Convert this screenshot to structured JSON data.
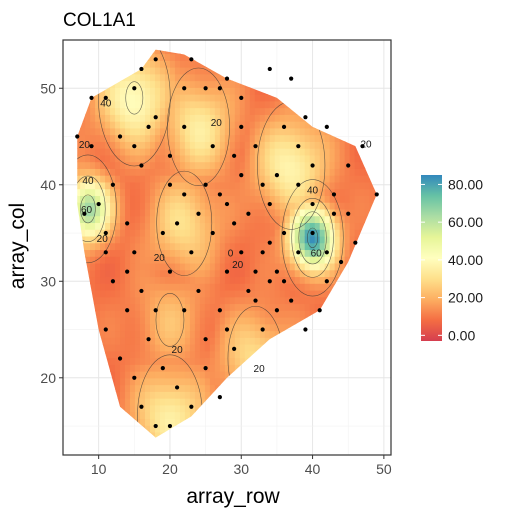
{
  "chart_data": {
    "type": "heatmap",
    "title": "COL1A1",
    "xlabel": "array_row",
    "ylabel": "array_col",
    "xlim": [
      5,
      51
    ],
    "ylim": [
      12,
      55
    ],
    "x_ticks": [
      10,
      20,
      30,
      40,
      50
    ],
    "y_ticks": [
      20,
      30,
      40,
      50
    ],
    "x_tick_labels": [
      "10",
      "20",
      "30",
      "40",
      "50"
    ],
    "y_tick_labels": [
      "20",
      "30",
      "40",
      "50"
    ],
    "grid": true,
    "legend": {
      "placement": "right",
      "min": -3,
      "max": 85,
      "ticks": [
        0,
        20,
        40,
        60,
        80
      ],
      "tick_labels": [
        "0.00",
        "20.00",
        "40.00",
        "60.00",
        "80.00"
      ],
      "colors": [
        "#d53e4f",
        "#f46d43",
        "#fdae61",
        "#fee08b",
        "#ffffbf",
        "#e6f598",
        "#abdda4",
        "#66c2a5",
        "#3288bd"
      ]
    },
    "surface_hull": [
      [
        7,
        45
      ],
      [
        9,
        49
      ],
      [
        16,
        52
      ],
      [
        18,
        54
      ],
      [
        22,
        53.5
      ],
      [
        28,
        51
      ],
      [
        35,
        49
      ],
      [
        40,
        46
      ],
      [
        46,
        44
      ],
      [
        49,
        39
      ],
      [
        45,
        32
      ],
      [
        41,
        27
      ],
      [
        34,
        24
      ],
      [
        28,
        20
      ],
      [
        23,
        16
      ],
      [
        18,
        13.8
      ],
      [
        13,
        17
      ],
      [
        10,
        25
      ],
      [
        8,
        33
      ],
      [
        7,
        38
      ]
    ],
    "hotspots": [
      {
        "x": 40,
        "y": 34.5,
        "value": 84
      },
      {
        "x": 8.5,
        "y": 37.5,
        "value": 66
      },
      {
        "x": 15,
        "y": 49,
        "value": 42
      },
      {
        "x": 37,
        "y": 42,
        "value": 38
      },
      {
        "x": 20,
        "y": 16,
        "value": 36
      },
      {
        "x": 22,
        "y": 36,
        "value": 30
      },
      {
        "x": 24,
        "y": 46,
        "value": 34
      },
      {
        "x": 32,
        "y": 22,
        "value": 30
      },
      {
        "x": 20,
        "y": 26,
        "value": 22
      }
    ],
    "base_value": 9,
    "spots": [
      [
        7,
        45
      ],
      [
        9,
        49
      ],
      [
        11,
        49
      ],
      [
        15,
        50
      ],
      [
        16,
        52
      ],
      [
        18,
        53
      ],
      [
        22,
        50
      ],
      [
        23,
        53
      ],
      [
        27,
        50
      ],
      [
        28,
        51
      ],
      [
        34,
        52
      ],
      [
        37,
        51
      ],
      [
        13,
        45
      ],
      [
        15,
        44
      ],
      [
        16,
        42
      ],
      [
        20,
        40
      ],
      [
        22,
        39
      ],
      [
        25,
        40
      ],
      [
        28,
        38
      ],
      [
        30,
        46
      ],
      [
        33,
        40
      ],
      [
        35,
        41
      ],
      [
        38,
        40
      ],
      [
        40,
        42
      ],
      [
        43,
        39
      ],
      [
        45,
        42
      ],
      [
        47,
        44
      ],
      [
        49,
        39
      ],
      [
        8,
        37
      ],
      [
        10,
        38
      ],
      [
        11,
        33
      ],
      [
        12,
        30
      ],
      [
        14,
        31
      ],
      [
        16,
        29
      ],
      [
        18,
        27
      ],
      [
        20,
        31
      ],
      [
        22,
        27
      ],
      [
        24,
        29
      ],
      [
        25,
        24
      ],
      [
        27,
        27
      ],
      [
        28,
        31
      ],
      [
        30,
        33
      ],
      [
        32,
        28
      ],
      [
        34,
        30
      ],
      [
        36,
        30
      ],
      [
        38,
        33
      ],
      [
        40,
        35
      ],
      [
        42,
        33
      ],
      [
        44,
        32
      ],
      [
        41,
        27
      ],
      [
        11,
        25
      ],
      [
        13,
        22
      ],
      [
        15,
        20
      ],
      [
        17,
        24
      ],
      [
        19,
        21
      ],
      [
        21,
        19
      ],
      [
        16,
        17
      ],
      [
        18,
        15
      ],
      [
        20,
        15
      ],
      [
        23,
        17
      ],
      [
        25,
        21
      ],
      [
        27,
        18
      ],
      [
        29,
        23
      ],
      [
        33,
        25
      ],
      [
        35,
        27
      ],
      [
        37,
        28
      ],
      [
        39,
        25
      ],
      [
        26,
        35
      ],
      [
        24,
        37
      ],
      [
        29,
        36
      ],
      [
        31,
        37
      ],
      [
        34,
        38
      ],
      [
        36,
        35
      ],
      [
        12,
        40
      ],
      [
        14,
        36
      ],
      [
        26,
        44
      ],
      [
        20,
        43
      ],
      [
        22,
        46
      ],
      [
        18,
        47
      ],
      [
        32,
        44
      ],
      [
        30,
        49
      ],
      [
        25,
        50
      ],
      [
        17,
        46
      ],
      [
        38,
        44
      ],
      [
        42,
        46
      ],
      [
        45,
        37
      ],
      [
        46,
        34
      ],
      [
        43,
        37
      ],
      [
        40,
        38
      ],
      [
        9,
        44
      ],
      [
        23,
        33
      ],
      [
        27,
        39
      ],
      [
        34,
        34
      ],
      [
        28,
        25
      ],
      [
        32,
        31
      ],
      [
        11,
        35
      ],
      [
        14,
        27
      ],
      [
        19,
        35
      ],
      [
        21,
        36
      ],
      [
        15,
        33
      ],
      [
        30,
        41
      ],
      [
        36,
        46
      ],
      [
        39,
        47
      ],
      [
        42,
        30
      ],
      [
        29,
        43
      ],
      [
        31,
        29
      ],
      [
        33,
        33
      ],
      [
        35,
        31
      ]
    ],
    "contour_labels": [
      {
        "x": 11,
        "y": 48.5,
        "text": "40"
      },
      {
        "x": 8,
        "y": 44.2,
        "text": "20"
      },
      {
        "x": 8.5,
        "y": 40.5,
        "text": "40"
      },
      {
        "x": 8.3,
        "y": 37.5,
        "text": "60"
      },
      {
        "x": 10.5,
        "y": 34.5,
        "text": "20"
      },
      {
        "x": 18.5,
        "y": 32.5,
        "text": "20"
      },
      {
        "x": 26.5,
        "y": 46.5,
        "text": "20"
      },
      {
        "x": 28.5,
        "y": 33,
        "text": "0"
      },
      {
        "x": 29.5,
        "y": 31.8,
        "text": "20"
      },
      {
        "x": 47.5,
        "y": 44.3,
        "text": "20"
      },
      {
        "x": 40,
        "y": 39.5,
        "text": "40"
      },
      {
        "x": 40.5,
        "y": 33,
        "text": "60"
      },
      {
        "x": 21,
        "y": 23,
        "text": "20"
      },
      {
        "x": 32.5,
        "y": 21,
        "text": "20"
      }
    ]
  }
}
